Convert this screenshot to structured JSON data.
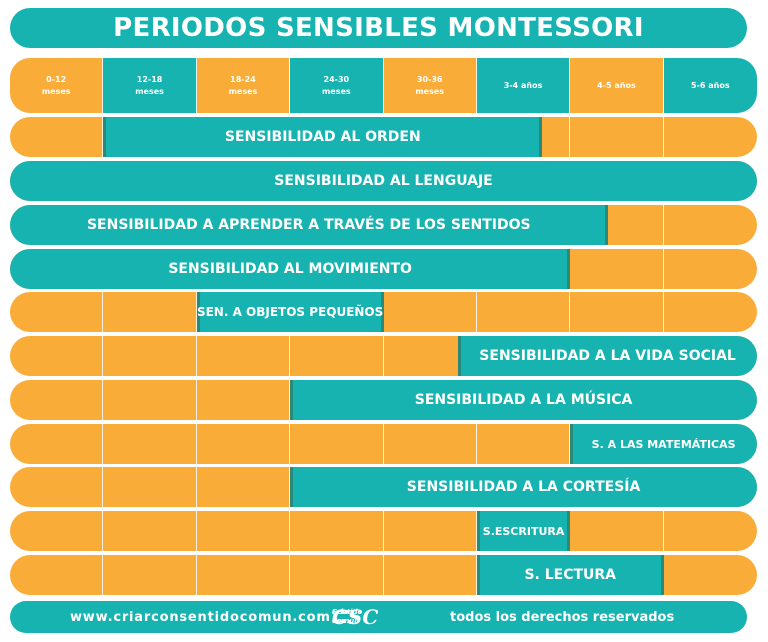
{
  "title": "PERIODOS SENSIBLES MONTESSORI",
  "header": [
    {
      "l1": "0-12",
      "l2": "meses",
      "color": "#f9ac38"
    },
    {
      "l1": "12-18",
      "l2": "meses",
      "color": "#16b3b0"
    },
    {
      "l1": "18-24",
      "l2": "meses",
      "color": "#f9ac38"
    },
    {
      "l1": "24-30",
      "l2": "meses",
      "color": "#16b3b0"
    },
    {
      "l1": "30-36",
      "l2": "meses",
      "color": "#f9ac38"
    },
    {
      "l1": "3-4 años",
      "l2": "",
      "color": "#16b3b0"
    },
    {
      "l1": "4-5 años",
      "l2": "",
      "color": "#f9ac38"
    },
    {
      "l1": "5-6 años",
      "l2": "",
      "color": "#16b3b0"
    }
  ],
  "periods": [
    {
      "label": "SENSIBILIDAD AL ORDEN",
      "start_col": 1,
      "end_col": 5.7
    },
    {
      "label": "SENSIBILIDAD AL LENGUAJE",
      "start_col": 0,
      "end_col": 8
    },
    {
      "label": "SENSIBILIDAD A APRENDER A TRAVÉS DE LOS SENTIDOS",
      "start_col": 0,
      "end_col": 6.4
    },
    {
      "label": "SENSIBILIDAD AL MOVIMIENTO",
      "start_col": 0,
      "end_col": 6.0
    },
    {
      "label": "SEN. A OBJETOS PEQUEÑOS",
      "start_col": 2,
      "end_col": 4
    },
    {
      "label": "SENSIBILIDAD A LA VIDA SOCIAL",
      "start_col": 4.8,
      "end_col": 8
    },
    {
      "label": "SENSIBILIDAD A LA MÚSICA",
      "start_col": 3,
      "end_col": 8
    },
    {
      "label": "S. A LAS MATEMÁTICAS",
      "start_col": 6,
      "end_col": 8
    },
    {
      "label": "SENSIBILIDAD A LA CORTESÍA",
      "start_col": 3,
      "end_col": 8
    },
    {
      "label": "S.ESCRITURA",
      "start_col": 5,
      "end_col": 6
    },
    {
      "label": "S. LECTURA",
      "start_col": 5,
      "end_col": 7
    }
  ],
  "footer": {
    "website": "www.criarconsentidocomun.com",
    "logo_mark": "CSC",
    "logo_line1": "Criar con",
    "logo_line2": "Sentido Común",
    "rights": "todos los derechos reservados"
  },
  "colors": {
    "orange": "#f9ac38",
    "teal": "#16b3b0"
  }
}
